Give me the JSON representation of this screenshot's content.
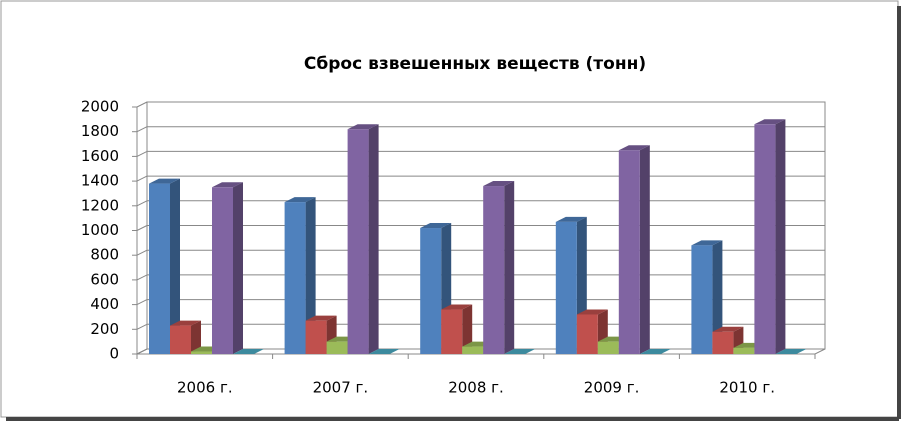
{
  "chart_data": {
    "type": "bar3d",
    "title": "Сброс взвешенных веществ  (тонн)",
    "categories": [
      "2006 г.",
      "2007 г.",
      "2008 г.",
      "2009 г.",
      "2010 г."
    ],
    "series": [
      {
        "color": "#4f81bd",
        "values": [
          1380,
          1230,
          1020,
          1070,
          880
        ]
      },
      {
        "color": "#c0504d",
        "values": [
          230,
          270,
          360,
          320,
          180
        ]
      },
      {
        "color": "#9bbb59",
        "values": [
          20,
          100,
          60,
          100,
          50
        ]
      },
      {
        "color": "#8064a2",
        "values": [
          1350,
          1820,
          1360,
          1650,
          1860
        ]
      },
      {
        "color": "#4bacc6",
        "values": [
          0,
          0,
          0,
          0,
          0
        ]
      }
    ],
    "ylim": [
      0,
      2000
    ],
    "yticks": [
      0,
      200,
      400,
      600,
      800,
      1000,
      1200,
      1400,
      1600,
      1800,
      2000
    ],
    "grid": true
  }
}
